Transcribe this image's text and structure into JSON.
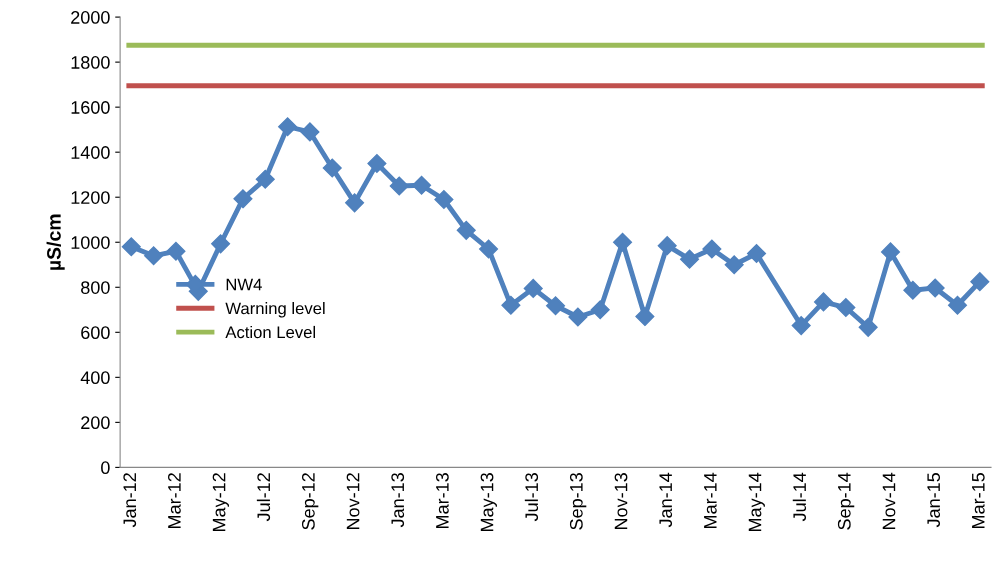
{
  "chart_data": {
    "type": "line",
    "ylabel": "µS/cm",
    "categories": [
      "Jan-12",
      null,
      "Mar-12",
      null,
      "May-12",
      null,
      "Jul-12",
      null,
      "Sep-12",
      null,
      "Nov-12",
      null,
      "Jan-13",
      null,
      "Mar-13",
      null,
      "May-13",
      null,
      "Jul-13",
      null,
      "Sep-13",
      null,
      "Nov-13",
      null,
      "Jan-14",
      null,
      "Mar-14",
      null,
      "May-14",
      null,
      "Jul-14",
      null,
      "Sep-14",
      null,
      "Nov-14",
      null,
      "Jan-15",
      null,
      "Mar-15"
    ],
    "series": [
      {
        "name": "NW4",
        "color": "#4f81bd",
        "values": [
          980,
          940,
          960,
          782,
          993,
          1193,
          1280,
          1513,
          1490,
          1330,
          1175,
          1350,
          1250,
          1253,
          1190,
          1053,
          970,
          720,
          795,
          718,
          668,
          700,
          1000,
          670,
          985,
          925,
          970,
          900,
          950,
          null,
          630,
          735,
          710,
          622,
          957,
          787,
          797,
          720,
          825
        ]
      }
    ],
    "ref_lines": [
      {
        "axis": "y",
        "value": 1695,
        "label": "Warning level",
        "color": "#c0504d"
      },
      {
        "axis": "y",
        "value": 1875,
        "label": "Action Level",
        "color": "#9bbb59"
      }
    ],
    "marker": "diamond",
    "ylim": [
      0,
      2000
    ],
    "yticks": [
      0,
      200,
      400,
      600,
      800,
      1000,
      1200,
      1400,
      1600,
      1800,
      2000
    ],
    "legend": "left",
    "grid": false
  }
}
